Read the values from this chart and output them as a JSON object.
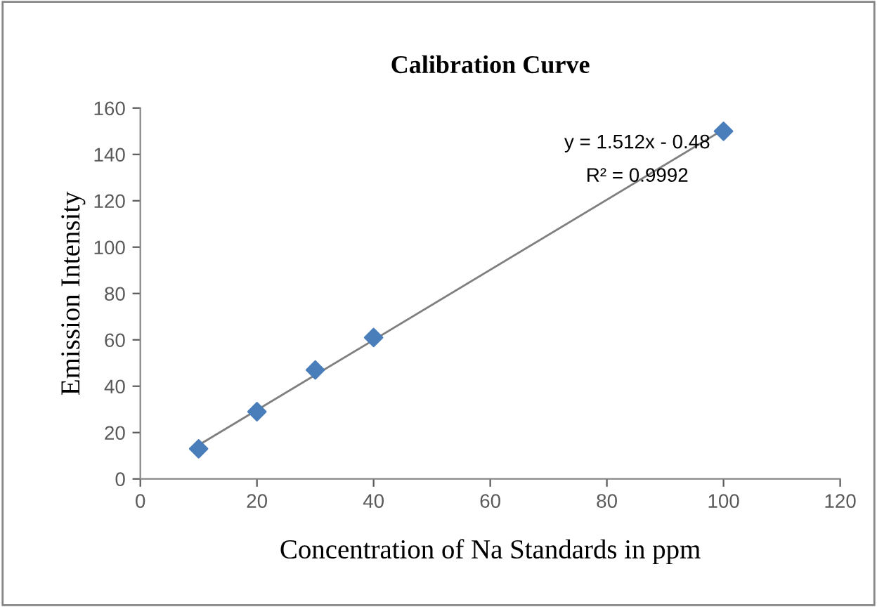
{
  "chart_data": {
    "type": "scatter",
    "title": "Calibration Curve",
    "xlabel": "Concentration of Na Standards in ppm",
    "ylabel": "Emission Intensity",
    "series": [
      {
        "color": "#4a7ebb",
        "x": [
          10,
          20,
          30,
          40,
          100
        ],
        "values": [
          13,
          29,
          47,
          61,
          150
        ],
        "marker": "diamond"
      },
      {
        "type": "line",
        "color": "#7f7f7f",
        "x": [
          10,
          100
        ],
        "values": [
          14.6,
          150.7
        ],
        "marker": "none",
        "line_style": "solid"
      }
    ],
    "annotations": [
      "y = 1.512x - 0.48",
      "R² = 0.9992"
    ],
    "xlim": [
      0,
      120
    ],
    "xticks": [
      0,
      20,
      40,
      60,
      80,
      100,
      120
    ],
    "ylim": [
      0,
      160
    ],
    "yticks": [
      0,
      20,
      40,
      60,
      80,
      100,
      120,
      140,
      160
    ],
    "grid": false,
    "legend": false
  }
}
